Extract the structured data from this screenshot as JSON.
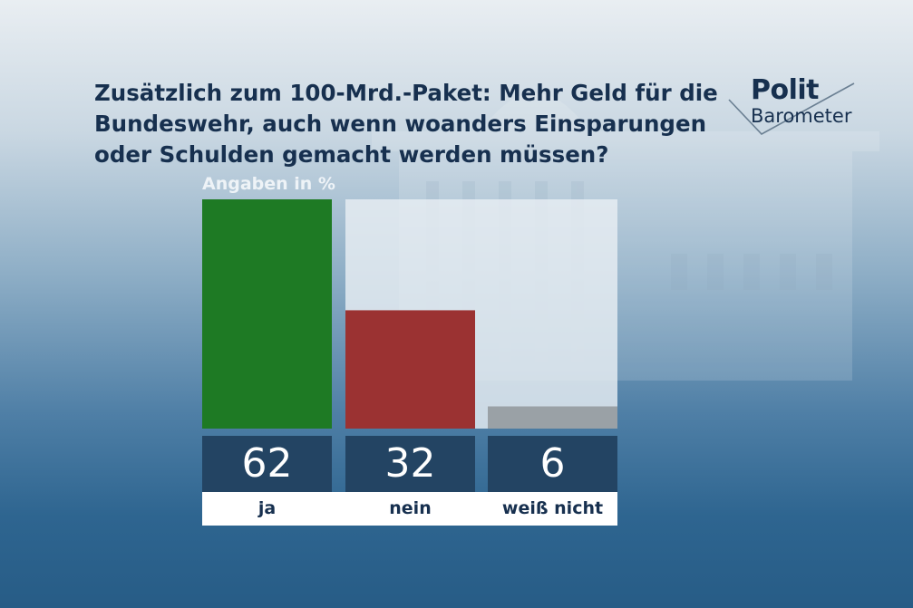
{
  "title": "Zusätzlich zum 100-Mrd.-Paket: Mehr Geld für die Bundeswehr, auch wenn woanders Einsparungen oder Schulden gemacht werden müssen?",
  "logo": {
    "word1": "Polit",
    "word2": "Barometer"
  },
  "colors": {
    "ja": "#1e7a24",
    "nein": "#9b3232",
    "weiss_nicht": "#9aa1a6",
    "value_box": "#234463"
  },
  "chart_data": {
    "type": "bar",
    "ylabel": "Angaben in %",
    "categories": [
      "ja",
      "nein",
      "weiß nicht"
    ],
    "values": [
      62,
      32,
      6
    ],
    "ylim": [
      0,
      62
    ],
    "grid": false,
    "value_labels": [
      "62",
      "32",
      "6"
    ]
  }
}
